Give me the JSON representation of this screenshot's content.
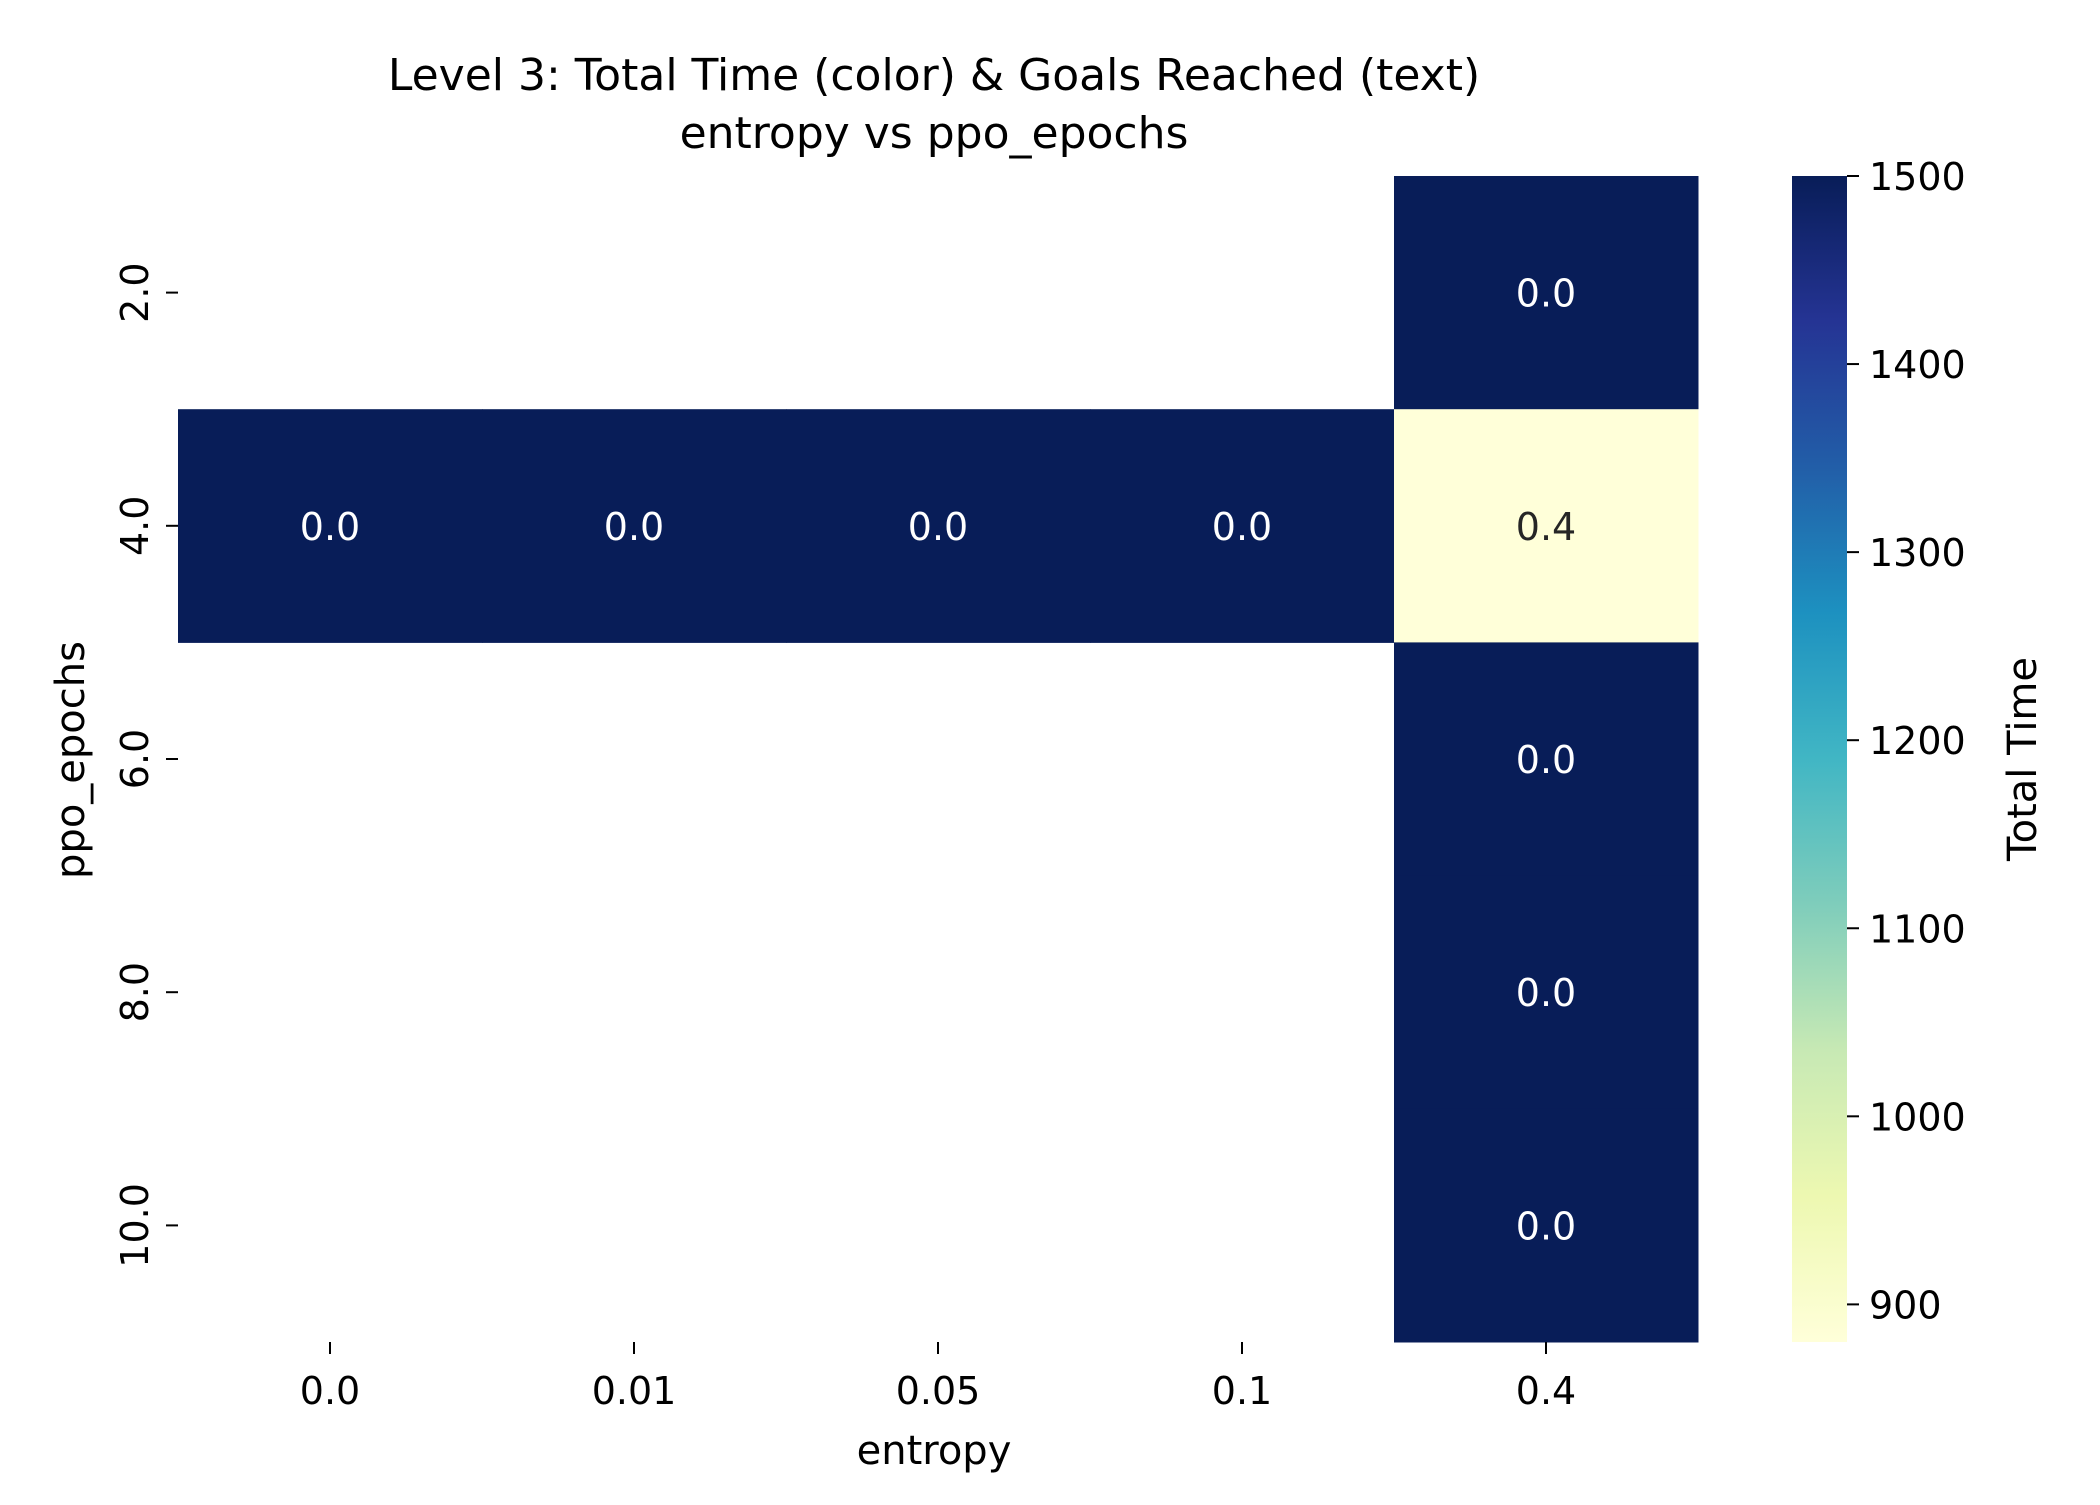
{
  "chart_data": {
    "type": "heatmap",
    "title": "Level 3: Total Time (color) & Goals Reached (text)",
    "subtitle": "entropy vs ppo_epochs",
    "xlabel": "entropy",
    "ylabel": "ppo_epochs",
    "x_categories": [
      "0.0",
      "0.01",
      "0.05",
      "0.1",
      "0.4"
    ],
    "y_categories": [
      "2.0",
      "4.0",
      "6.0",
      "8.0",
      "10.0"
    ],
    "color_values": [
      [
        null,
        null,
        null,
        null,
        1500
      ],
      [
        1500,
        1500,
        1500,
        1500,
        880
      ],
      [
        null,
        null,
        null,
        null,
        1500
      ],
      [
        null,
        null,
        null,
        null,
        1500
      ],
      [
        null,
        null,
        null,
        null,
        1500
      ]
    ],
    "annotations": [
      [
        null,
        null,
        null,
        null,
        "0.0"
      ],
      [
        "0.0",
        "0.0",
        "0.0",
        "0.0",
        "0.4"
      ],
      [
        null,
        null,
        null,
        null,
        "0.0"
      ],
      [
        null,
        null,
        null,
        null,
        "0.0"
      ],
      [
        null,
        null,
        null,
        null,
        "0.0"
      ]
    ],
    "colorbar": {
      "label": "Total Time",
      "colormap": "YlGnBu",
      "vmin": 880,
      "vmax": 1500,
      "ticks": [
        900,
        1000,
        1100,
        1200,
        1300,
        1400,
        1500
      ]
    },
    "colors": {
      "high": "#0b1d57",
      "low": "#fffed4",
      "annotation_on_dark": "#ffffff",
      "annotation_on_light": "#262626"
    },
    "grid": false,
    "legend": "colorbar right"
  }
}
